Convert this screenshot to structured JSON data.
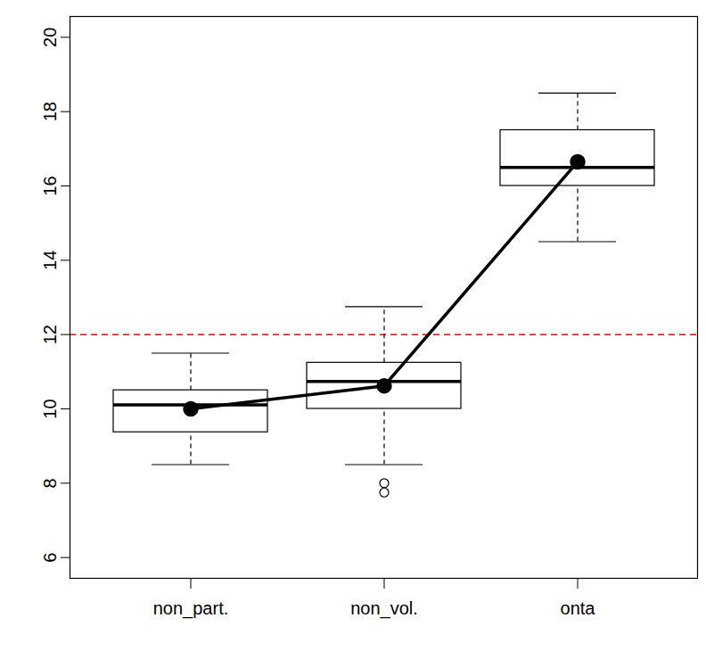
{
  "chart_data": {
    "type": "box",
    "categories": [
      "non_part.",
      "non_vol.",
      "onta"
    ],
    "whisker_low": [
      8.5,
      8.5,
      14.5
    ],
    "q1": [
      9.37,
      10.0,
      16.0
    ],
    "median": [
      10.11,
      10.74,
      16.5
    ],
    "q3": [
      10.5,
      11.24,
      17.5
    ],
    "whisker_high": [
      11.5,
      12.75,
      18.5
    ],
    "means": [
      10.0,
      10.62,
      16.65
    ],
    "outliers": [
      [],
      [
        8.0,
        7.75
      ],
      []
    ],
    "reference_line": {
      "value": 12,
      "color": "#ff0000",
      "line_style": "dashed"
    },
    "color": "#000000",
    "ylim": [
      5.44,
      20.56
    ],
    "yticks": [
      6,
      8,
      10,
      12,
      14,
      16,
      18,
      20
    ],
    "grid": false
  }
}
